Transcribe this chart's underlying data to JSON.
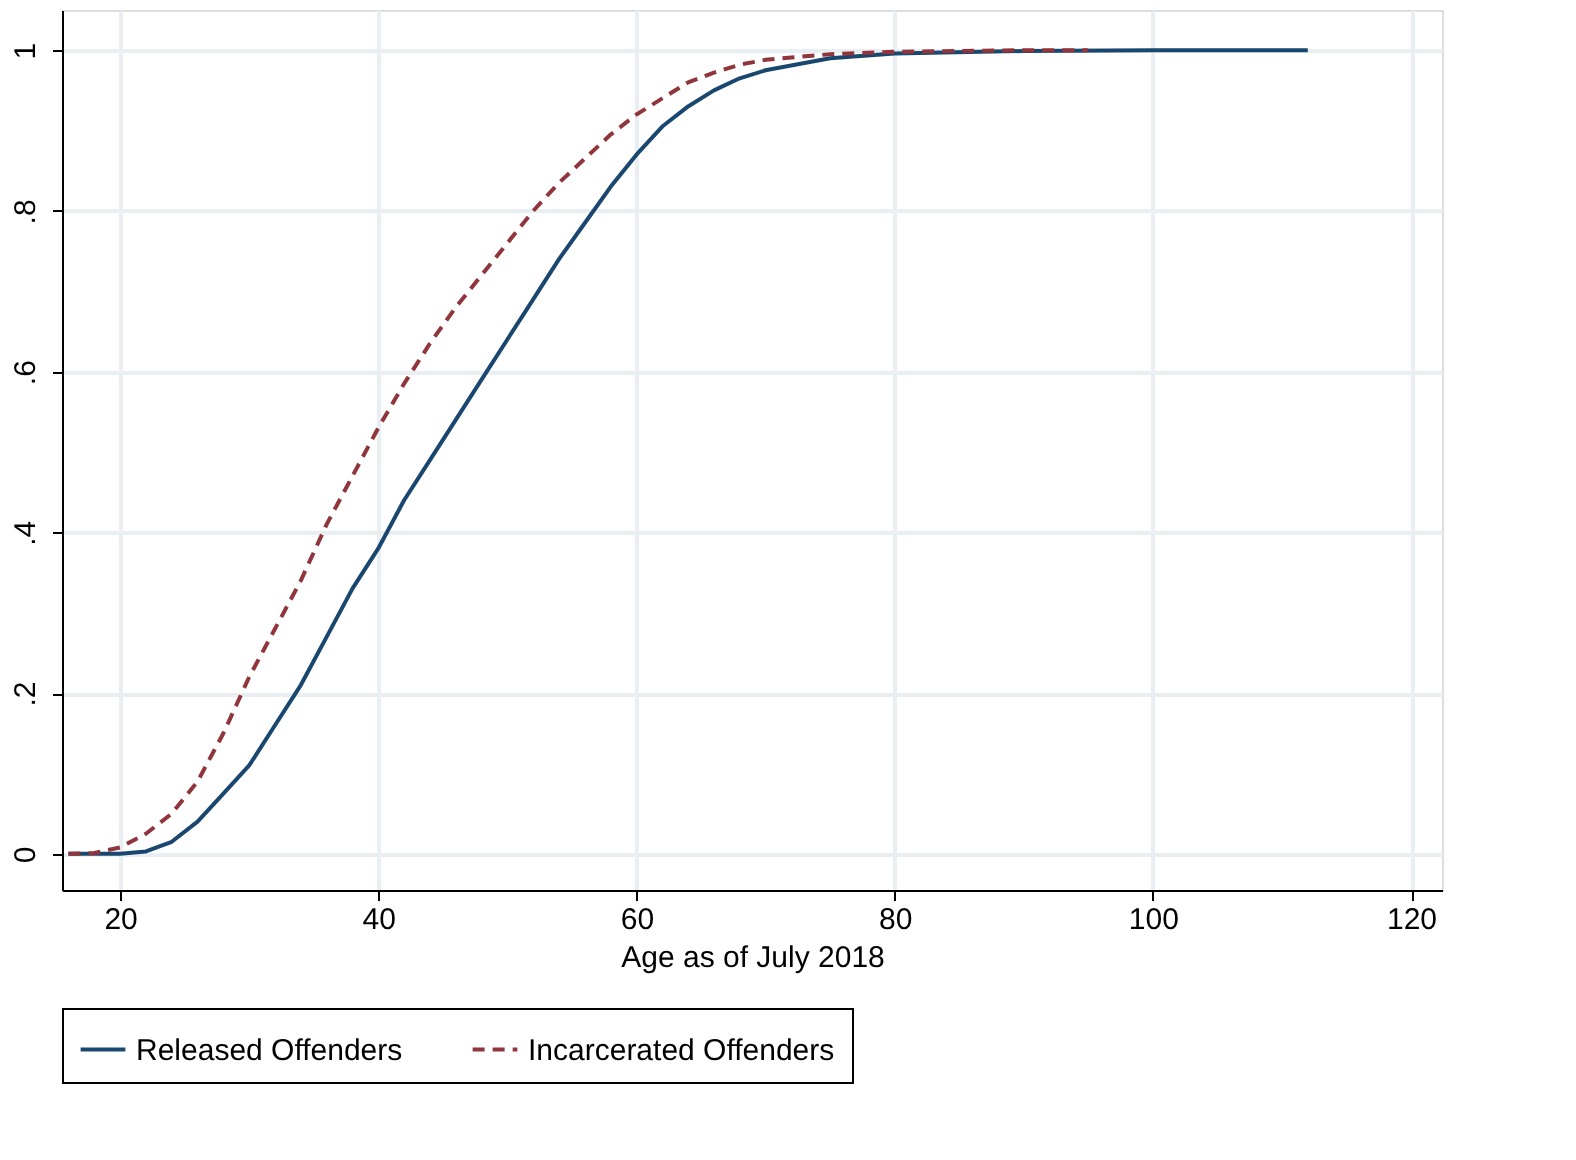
{
  "chart_data": {
    "type": "line",
    "xlabel": "Age as of July 2018",
    "xlim": [
      15.5,
      122.4
    ],
    "xticks": [
      20,
      40,
      60,
      80,
      100,
      120
    ],
    "ylim": [
      -0.045,
      1.05
    ],
    "yticks": [
      0,
      {
        "value": 0.2,
        "label": ".2"
      },
      {
        "value": 0.4,
        "label": ".4"
      },
      {
        "value": 0.6,
        "label": ".6"
      },
      {
        "value": 0.8,
        "label": ".8"
      },
      1
    ],
    "grid": true,
    "legend": "bottom",
    "marker": "none",
    "series": [
      {
        "name": "Released Offenders",
        "color": "#1a476f",
        "line_style": "solid",
        "x": [
          16,
          20,
          22,
          24,
          26,
          28,
          30,
          32,
          34,
          36,
          38,
          40,
          42,
          44,
          46,
          48,
          50,
          52,
          54,
          56,
          58,
          60,
          62,
          64,
          66,
          68,
          70,
          75,
          80,
          90,
          100,
          112
        ],
        "values": [
          0,
          0,
          0.003,
          0.015,
          0.04,
          0.075,
          0.11,
          0.16,
          0.21,
          0.27,
          0.33,
          0.38,
          0.44,
          0.49,
          0.54,
          0.59,
          0.64,
          0.69,
          0.74,
          0.785,
          0.83,
          0.87,
          0.905,
          0.93,
          0.95,
          0.965,
          0.975,
          0.99,
          0.996,
          0.999,
          1,
          1
        ]
      },
      {
        "name": "Incarcerated Offenders",
        "color": "#90353b",
        "line_style": "dashed",
        "x": [
          16,
          18,
          20,
          22,
          24,
          26,
          28,
          30,
          32,
          34,
          36,
          38,
          40,
          42,
          44,
          46,
          48,
          50,
          52,
          54,
          56,
          58,
          60,
          62,
          64,
          66,
          68,
          70,
          75,
          80,
          90,
          95
        ],
        "values": [
          0,
          0.001,
          0.008,
          0.025,
          0.05,
          0.09,
          0.15,
          0.22,
          0.28,
          0.34,
          0.41,
          0.47,
          0.53,
          0.585,
          0.635,
          0.68,
          0.72,
          0.76,
          0.8,
          0.835,
          0.865,
          0.895,
          0.92,
          0.94,
          0.96,
          0.972,
          0.982,
          0.988,
          0.995,
          0.998,
          1,
          1
        ]
      }
    ]
  }
}
